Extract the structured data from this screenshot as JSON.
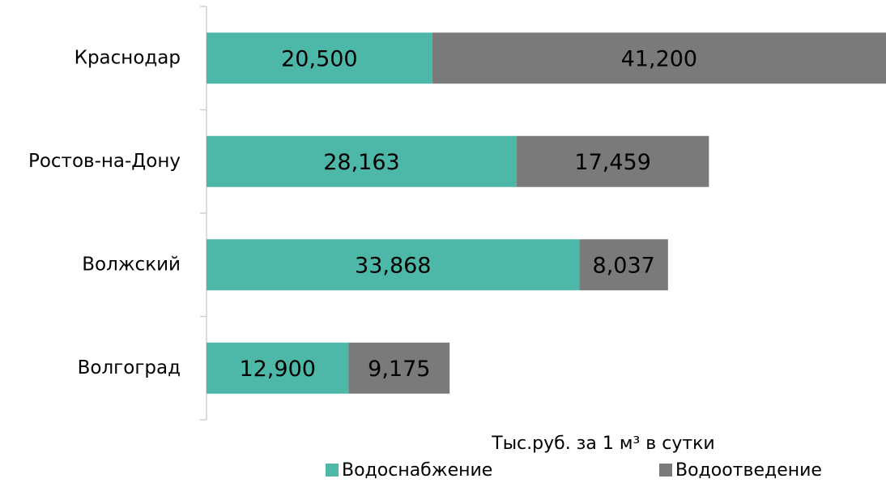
{
  "chart_data": {
    "type": "bar",
    "orientation": "horizontal",
    "stacked": true,
    "x_label": "Тыс.руб. за 1 м³ в сутки",
    "categories": [
      "Краснодар",
      "Ростов-на-Дону",
      "Волжский",
      "Волгоград"
    ],
    "series": [
      {
        "name": "Водоснабжение",
        "color": "#4db8a8",
        "values": [
          20500,
          28163,
          33868,
          12900
        ],
        "value_labels": [
          "20,500",
          "28,163",
          "33,868",
          "12,900"
        ]
      },
      {
        "name": "Водоотведение",
        "color": "#7a7a7a",
        "values": [
          41200,
          17459,
          8037,
          9175
        ],
        "value_labels": [
          "41,200",
          "17,459",
          "8,037",
          "9,175"
        ]
      }
    ],
    "xlim": [
      0,
      61700
    ]
  }
}
